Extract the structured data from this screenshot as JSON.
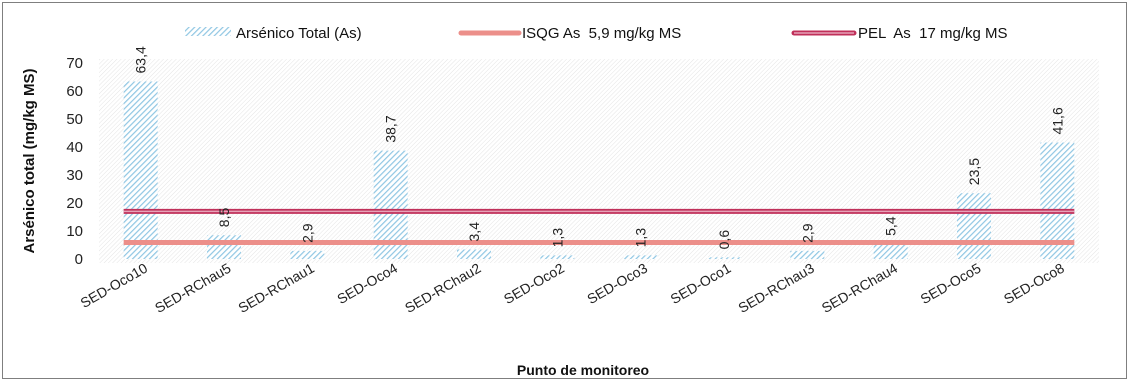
{
  "chart_data": {
    "type": "bar",
    "title": "",
    "xlabel": "Punto de monitoreo",
    "ylabel": "Arsénico total  (mg/kg MS)",
    "ylim": [
      0,
      70
    ],
    "yticks": [
      0,
      10,
      20,
      30,
      40,
      50,
      60,
      70
    ],
    "grid": false,
    "legend_position": "top",
    "categories": [
      "SED-Oco10",
      "SED-RChau5",
      "SED-RChau1",
      "SED-Oco4",
      "SED-RChau2",
      "SED-Oco2",
      "SED-Oco3",
      "SED-Oco1",
      "SED-RChau3",
      "SED-RChau4",
      "SED-Oco5",
      "SED-Oco8"
    ],
    "series": [
      {
        "name": "Arsénico Total (As)",
        "type": "bar",
        "values": [
          63.4,
          8.5,
          2.9,
          38.7,
          3.4,
          1.3,
          1.3,
          0.6,
          2.9,
          5.4,
          23.5,
          41.6
        ],
        "labels": [
          "63,4",
          "8,5",
          "2,9",
          "38,7",
          "3,4",
          "1,3",
          "1,3",
          "0,6",
          "2,9",
          "5,4",
          "23,5",
          "41,6"
        ],
        "color": "#9fd0e8"
      },
      {
        "name": "ISQG As  5,9 mg/kg MS",
        "type": "line",
        "value": 5.9,
        "color": "#ec8f8a"
      },
      {
        "name": "PEL  As  17 mg/kg MS",
        "type": "line",
        "value": 17,
        "color": "#c0305a"
      }
    ]
  }
}
